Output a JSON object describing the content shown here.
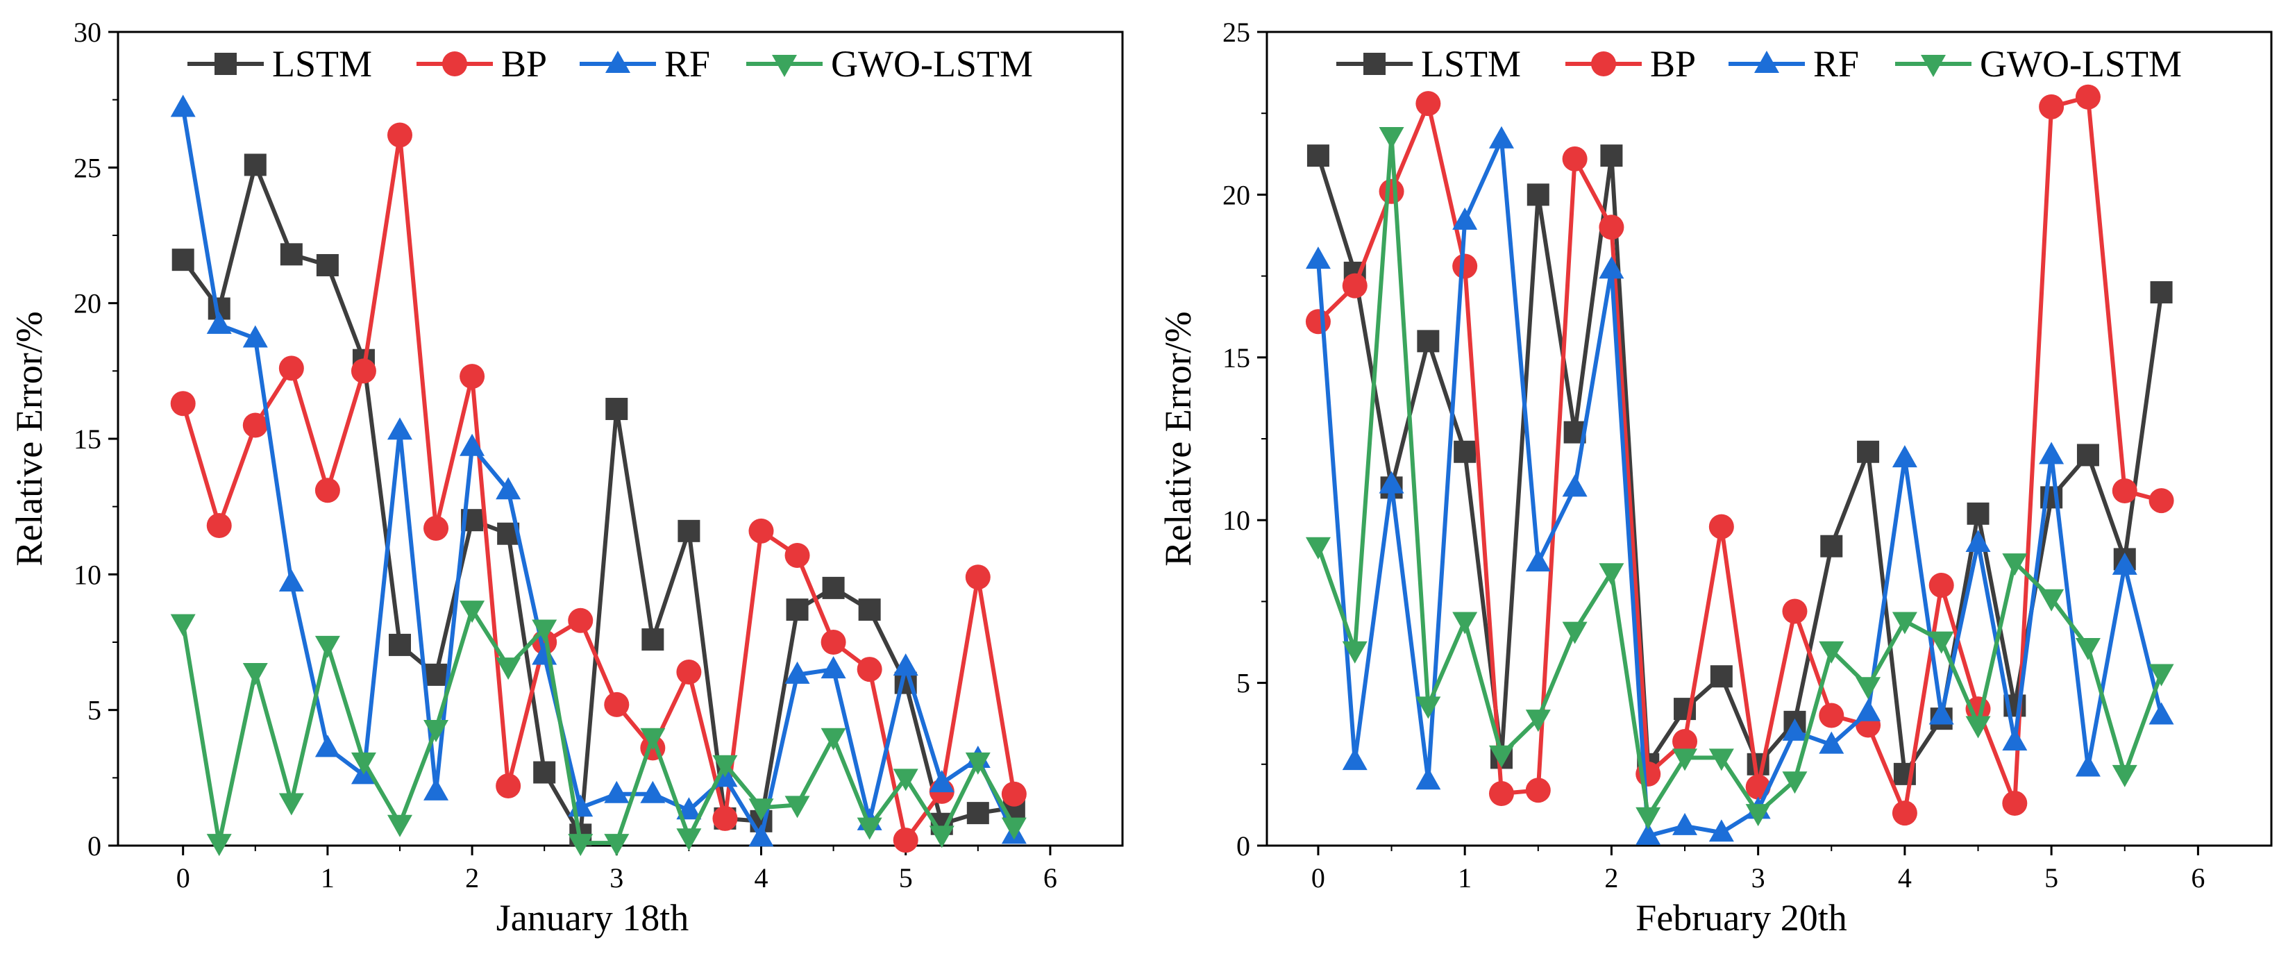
{
  "chart_data": [
    {
      "type": "line",
      "title": "",
      "xlabel": "January 18th",
      "ylabel": "Relative Error/%",
      "xlim": [
        -0.45,
        6.5
      ],
      "ylim": [
        0,
        30
      ],
      "xticks": [
        "0",
        "1",
        "2",
        "3",
        "4",
        "5",
        "6"
      ],
      "yticks": [
        "0",
        "5",
        "10",
        "15",
        "20",
        "25",
        "30"
      ],
      "legend": "top",
      "x": [
        0,
        0.25,
        0.5,
        0.75,
        1,
        1.25,
        1.5,
        1.75,
        2,
        2.25,
        2.5,
        2.75,
        3,
        3.25,
        3.5,
        3.75,
        4,
        4.25,
        4.5,
        4.75,
        5,
        5.25,
        5.5,
        5.75
      ],
      "series": [
        {
          "name": "LSTM",
          "color": "#3d3d3d",
          "marker": "square",
          "values": [
            21.6,
            19.8,
            25.1,
            21.8,
            21.4,
            17.9,
            7.4,
            6.3,
            12.0,
            11.5,
            2.7,
            0.4,
            16.1,
            7.6,
            11.6,
            1.0,
            0.9,
            8.7,
            9.5,
            8.7,
            6.0,
            0.8,
            1.2,
            1.4
          ]
        },
        {
          "name": "BP",
          "color": "#e8373a",
          "marker": "circle",
          "values": [
            16.3,
            11.8,
            15.5,
            17.6,
            13.1,
            17.5,
            26.2,
            11.7,
            17.3,
            2.2,
            7.5,
            8.3,
            5.2,
            3.6,
            6.4,
            1.0,
            11.6,
            10.7,
            7.5,
            6.5,
            0.2,
            2.0,
            9.9,
            1.9
          ]
        },
        {
          "name": "RF",
          "color": "#1c6ed8",
          "marker": "triangle-up",
          "values": [
            27.2,
            19.2,
            18.7,
            9.7,
            3.6,
            2.6,
            15.3,
            2.0,
            14.7,
            13.1,
            7.0,
            1.4,
            1.9,
            1.9,
            1.3,
            2.5,
            0.3,
            6.3,
            6.5,
            0.9,
            6.6,
            2.3,
            3.2,
            0.4
          ]
        },
        {
          "name": "GWO-LSTM",
          "color": "#3ba55d",
          "marker": "triangle-down",
          "values": [
            8.2,
            0.1,
            6.4,
            1.6,
            7.4,
            3.1,
            0.8,
            4.3,
            8.7,
            6.6,
            8.0,
            0.1,
            0.1,
            4.0,
            0.3,
            3.0,
            1.4,
            1.5,
            4.0,
            0.7,
            2.5,
            0.4,
            3.1,
            0.7
          ]
        }
      ]
    },
    {
      "type": "line",
      "title": "",
      "xlabel": "February 20th",
      "ylabel": "Relative Error/%",
      "xlim": [
        -0.35,
        6.5
      ],
      "ylim": [
        0,
        25
      ],
      "xticks": [
        "0",
        "1",
        "2",
        "3",
        "4",
        "5",
        "6"
      ],
      "yticks": [
        "0",
        "5",
        "10",
        "15",
        "20",
        "25"
      ],
      "legend": "top",
      "x": [
        0,
        0.25,
        0.5,
        0.75,
        1,
        1.25,
        1.5,
        1.75,
        2,
        2.25,
        2.5,
        2.75,
        3,
        3.25,
        3.5,
        3.75,
        4,
        4.25,
        4.5,
        4.75,
        5,
        5.25,
        5.5,
        5.75
      ],
      "series": [
        {
          "name": "LSTM",
          "color": "#3d3d3d",
          "marker": "square",
          "values": [
            21.2,
            17.6,
            11.0,
            15.5,
            12.1,
            2.7,
            20.0,
            12.7,
            21.2,
            2.5,
            4.2,
            5.2,
            2.5,
            3.8,
            9.2,
            12.1,
            2.2,
            3.9,
            10.2,
            4.3,
            10.7,
            12.0,
            8.8,
            17.0
          ]
        },
        {
          "name": "BP",
          "color": "#e8373a",
          "marker": "circle",
          "values": [
            16.1,
            17.2,
            20.1,
            22.8,
            17.8,
            1.6,
            1.7,
            21.1,
            19.0,
            2.2,
            3.2,
            9.8,
            1.8,
            7.2,
            4.0,
            3.7,
            1.0,
            8.0,
            4.2,
            1.3,
            22.7,
            23.0,
            10.9,
            10.6
          ]
        },
        {
          "name": "RF",
          "color": "#1c6ed8",
          "marker": "triangle-up",
          "values": [
            18.0,
            2.6,
            11.1,
            2.0,
            19.2,
            21.7,
            8.7,
            11.0,
            17.7,
            0.3,
            0.6,
            0.4,
            1.1,
            3.5,
            3.1,
            4.1,
            11.9,
            4.0,
            9.3,
            3.2,
            12.0,
            2.4,
            8.6,
            4.0
          ]
        },
        {
          "name": "GWO-LSTM",
          "color": "#3ba55d",
          "marker": "triangle-down",
          "values": [
            9.2,
            6.0,
            21.8,
            4.3,
            6.9,
            2.8,
            3.9,
            6.6,
            8.4,
            0.9,
            2.7,
            2.7,
            1.0,
            2.0,
            6.0,
            4.9,
            6.9,
            6.3,
            3.7,
            8.7,
            7.6,
            6.1,
            2.2,
            5.3
          ]
        }
      ]
    }
  ]
}
